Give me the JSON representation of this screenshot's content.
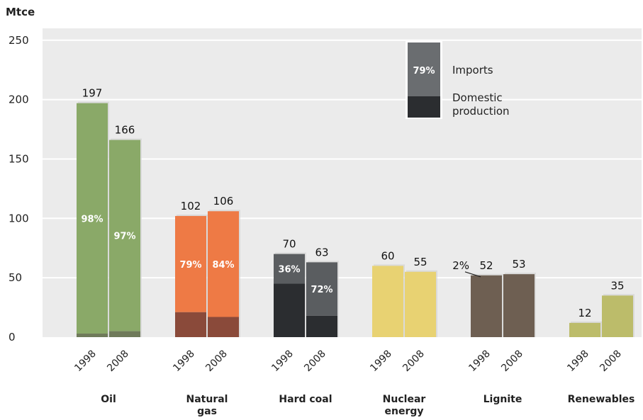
{
  "chart_data": {
    "type": "bar",
    "ylabel": "Mtce",
    "ylim": [
      0,
      260
    ],
    "yticks": [
      0,
      50,
      100,
      150,
      200,
      250
    ],
    "grid": true,
    "legend_position": "top-right",
    "legend": {
      "sample_label": "79%",
      "imports": "Imports",
      "domestic": [
        "Domestic",
        "production"
      ]
    },
    "categories": [
      {
        "label": [
          "Oil"
        ],
        "colors": {
          "imports": "#8aa968",
          "domestic": "#6f7a5a"
        },
        "bars": [
          {
            "year": "1998",
            "total": 197,
            "total_label": "197",
            "domestic": 3,
            "pct_label": "98%"
          },
          {
            "year": "2008",
            "total": 166,
            "total_label": "166",
            "domestic": 5,
            "pct_label": "97%"
          }
        ]
      },
      {
        "label": [
          "Natural",
          "gas"
        ],
        "colors": {
          "imports": "#ee7a45",
          "domestic": "#8a4a3a"
        },
        "bars": [
          {
            "year": "1998",
            "total": 102,
            "total_label": "102",
            "domestic": 21,
            "pct_label": "79%"
          },
          {
            "year": "2008",
            "total": 106,
            "total_label": "106",
            "domestic": 17,
            "pct_label": "84%"
          }
        ]
      },
      {
        "label": [
          "Hard coal"
        ],
        "colors": {
          "imports": "#5a5d60",
          "domestic": "#2b2d30"
        },
        "bars": [
          {
            "year": "1998",
            "total": 70,
            "total_label": "70",
            "domestic": 45,
            "pct_label": "36%"
          },
          {
            "year": "2008",
            "total": 63,
            "total_label": "63",
            "domestic": 18,
            "pct_label": "72%"
          }
        ]
      },
      {
        "label": [
          "Nuclear",
          "energy"
        ],
        "colors": {
          "imports": "#e8d272",
          "domestic": "#e8d272"
        },
        "bars": [
          {
            "year": "1998",
            "total": 60,
            "total_label": "60",
            "domestic": 0,
            "pct_label": ""
          },
          {
            "year": "2008",
            "total": 55,
            "total_label": "55",
            "domestic": 0,
            "pct_label": ""
          }
        ]
      },
      {
        "label": [
          "Lignite"
        ],
        "colors": {
          "imports": "#6e5f52",
          "domestic": "#6e5f52"
        },
        "bars": [
          {
            "year": "1998",
            "total": 52,
            "total_label": "52",
            "domestic": 52,
            "pct_label": ""
          },
          {
            "year": "2008",
            "total": 53,
            "total_label": "53",
            "domestic": 53,
            "pct_label": ""
          }
        ]
      },
      {
        "label": [
          "Renewables"
        ],
        "colors": {
          "imports": "#bcbc6a",
          "domestic": "#bcbc6a"
        },
        "bars": [
          {
            "year": "1998",
            "total": 12,
            "total_label": "12",
            "domestic": 12,
            "pct_label": ""
          },
          {
            "year": "2008",
            "total": 35,
            "total_label": "35",
            "domestic": 35,
            "pct_label": ""
          }
        ]
      }
    ],
    "annotations": [
      {
        "text": "2%",
        "category_index": 4,
        "bar_index": 0
      }
    ],
    "colors": {
      "plot_background": "#ebebeb",
      "gridline": "#ffffff",
      "legend_imports": "#6a6d70",
      "legend_domestic": "#2b2d30"
    }
  }
}
